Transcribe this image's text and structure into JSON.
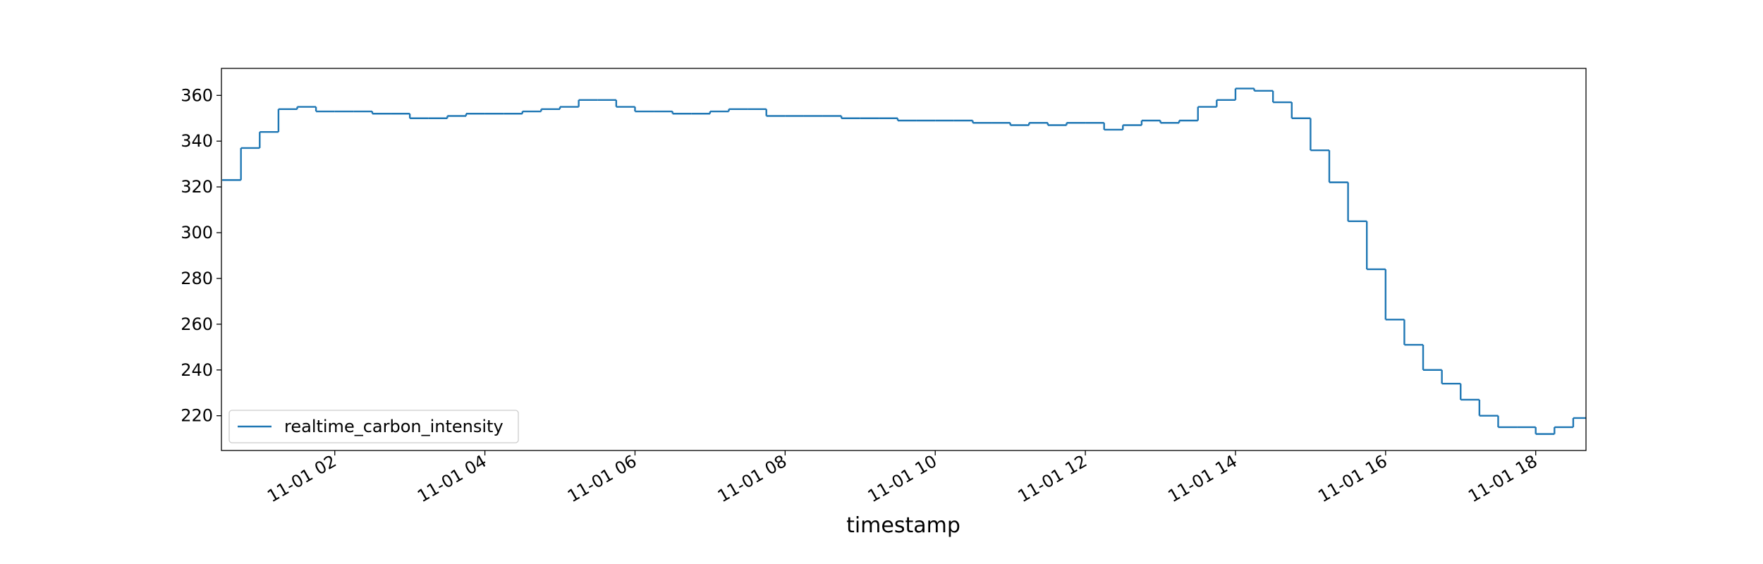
{
  "chart_data": {
    "type": "step",
    "x_label": "timestamp",
    "xlim": [
      0.49,
      18.67
    ],
    "xticks": [
      {
        "value": 2,
        "label": "11-01 02"
      },
      {
        "value": 4,
        "label": "11-01 04"
      },
      {
        "value": 6,
        "label": "11-01 06"
      },
      {
        "value": 8,
        "label": "11-01 08"
      },
      {
        "value": 10,
        "label": "11-01 10"
      },
      {
        "value": 12,
        "label": "11-01 12"
      },
      {
        "value": 14,
        "label": "11-01 14"
      },
      {
        "value": 16,
        "label": "11-01 16"
      },
      {
        "value": 18,
        "label": "11-01 18"
      }
    ],
    "ylim": [
      204.8,
      371.8
    ],
    "yticks": [
      220,
      240,
      260,
      280,
      300,
      320,
      340,
      360
    ],
    "grid": false,
    "legend": "lower left",
    "x": [
      0.5,
      0.75,
      1,
      1.25,
      1.5,
      1.75,
      2,
      2.25,
      2.5,
      2.75,
      3,
      3.25,
      3.5,
      3.75,
      4,
      4.25,
      4.5,
      4.75,
      5,
      5.25,
      5.5,
      5.75,
      6,
      6.25,
      6.5,
      6.75,
      7,
      7.25,
      7.5,
      7.75,
      8,
      8.25,
      8.5,
      8.75,
      9,
      9.25,
      9.5,
      9.75,
      10,
      10.25,
      10.5,
      10.75,
      11,
      11.25,
      11.5,
      11.75,
      12,
      12.25,
      12.5,
      12.75,
      13,
      13.25,
      13.5,
      13.75,
      14,
      14.25,
      14.5,
      14.75,
      15,
      15.25,
      15.5,
      15.75,
      16,
      16.25,
      16.5,
      16.75,
      17,
      17.25,
      17.5,
      17.75,
      18,
      18.25,
      18.5
    ],
    "series": [
      {
        "name": "realtime_carbon_intensity",
        "color": "#1f77b4",
        "values": [
          323,
          337,
          344,
          354,
          355,
          353,
          353,
          353,
          352,
          352,
          350,
          350,
          351,
          352,
          352,
          352,
          353,
          354,
          355,
          358,
          358,
          355,
          353,
          353,
          352,
          352,
          353,
          354,
          354,
          351,
          351,
          351,
          351,
          350,
          350,
          350,
          349,
          349,
          349,
          349,
          348,
          348,
          347,
          348,
          347,
          348,
          348,
          345,
          347,
          349,
          348,
          349,
          355,
          358,
          363,
          362,
          357,
          350,
          336,
          322,
          305,
          284,
          262,
          251,
          240,
          234,
          227,
          220,
          215,
          215,
          212,
          215,
          219
        ]
      }
    ]
  }
}
